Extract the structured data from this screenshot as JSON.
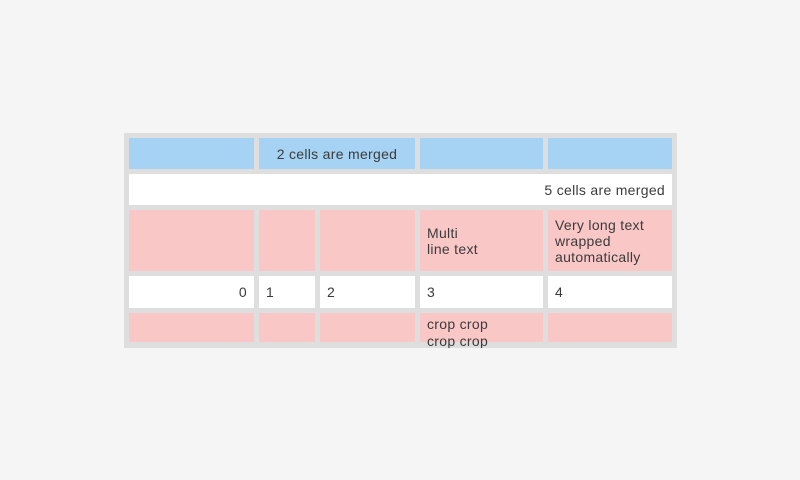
{
  "table": {
    "row1": {
      "merged_label": "2 cells are merged"
    },
    "row2": {
      "merged_label": "5 cells are merged"
    },
    "row3": {
      "multiline_label": "Multi\nline text",
      "wrapped_label": "Very long text wrapped automatically"
    },
    "row4": {
      "values": [
        "0",
        "1",
        "2",
        "3",
        "4"
      ]
    },
    "row5": {
      "crop_label": "crop crop crop crop"
    },
    "colors": {
      "page_background": "#f5f5f5",
      "table_background": "#dedede",
      "cell_blue": "#a6d3f3",
      "cell_pink": "#fac7c7",
      "cell_white": "#ffffff",
      "text": "#3b3b3b"
    }
  }
}
